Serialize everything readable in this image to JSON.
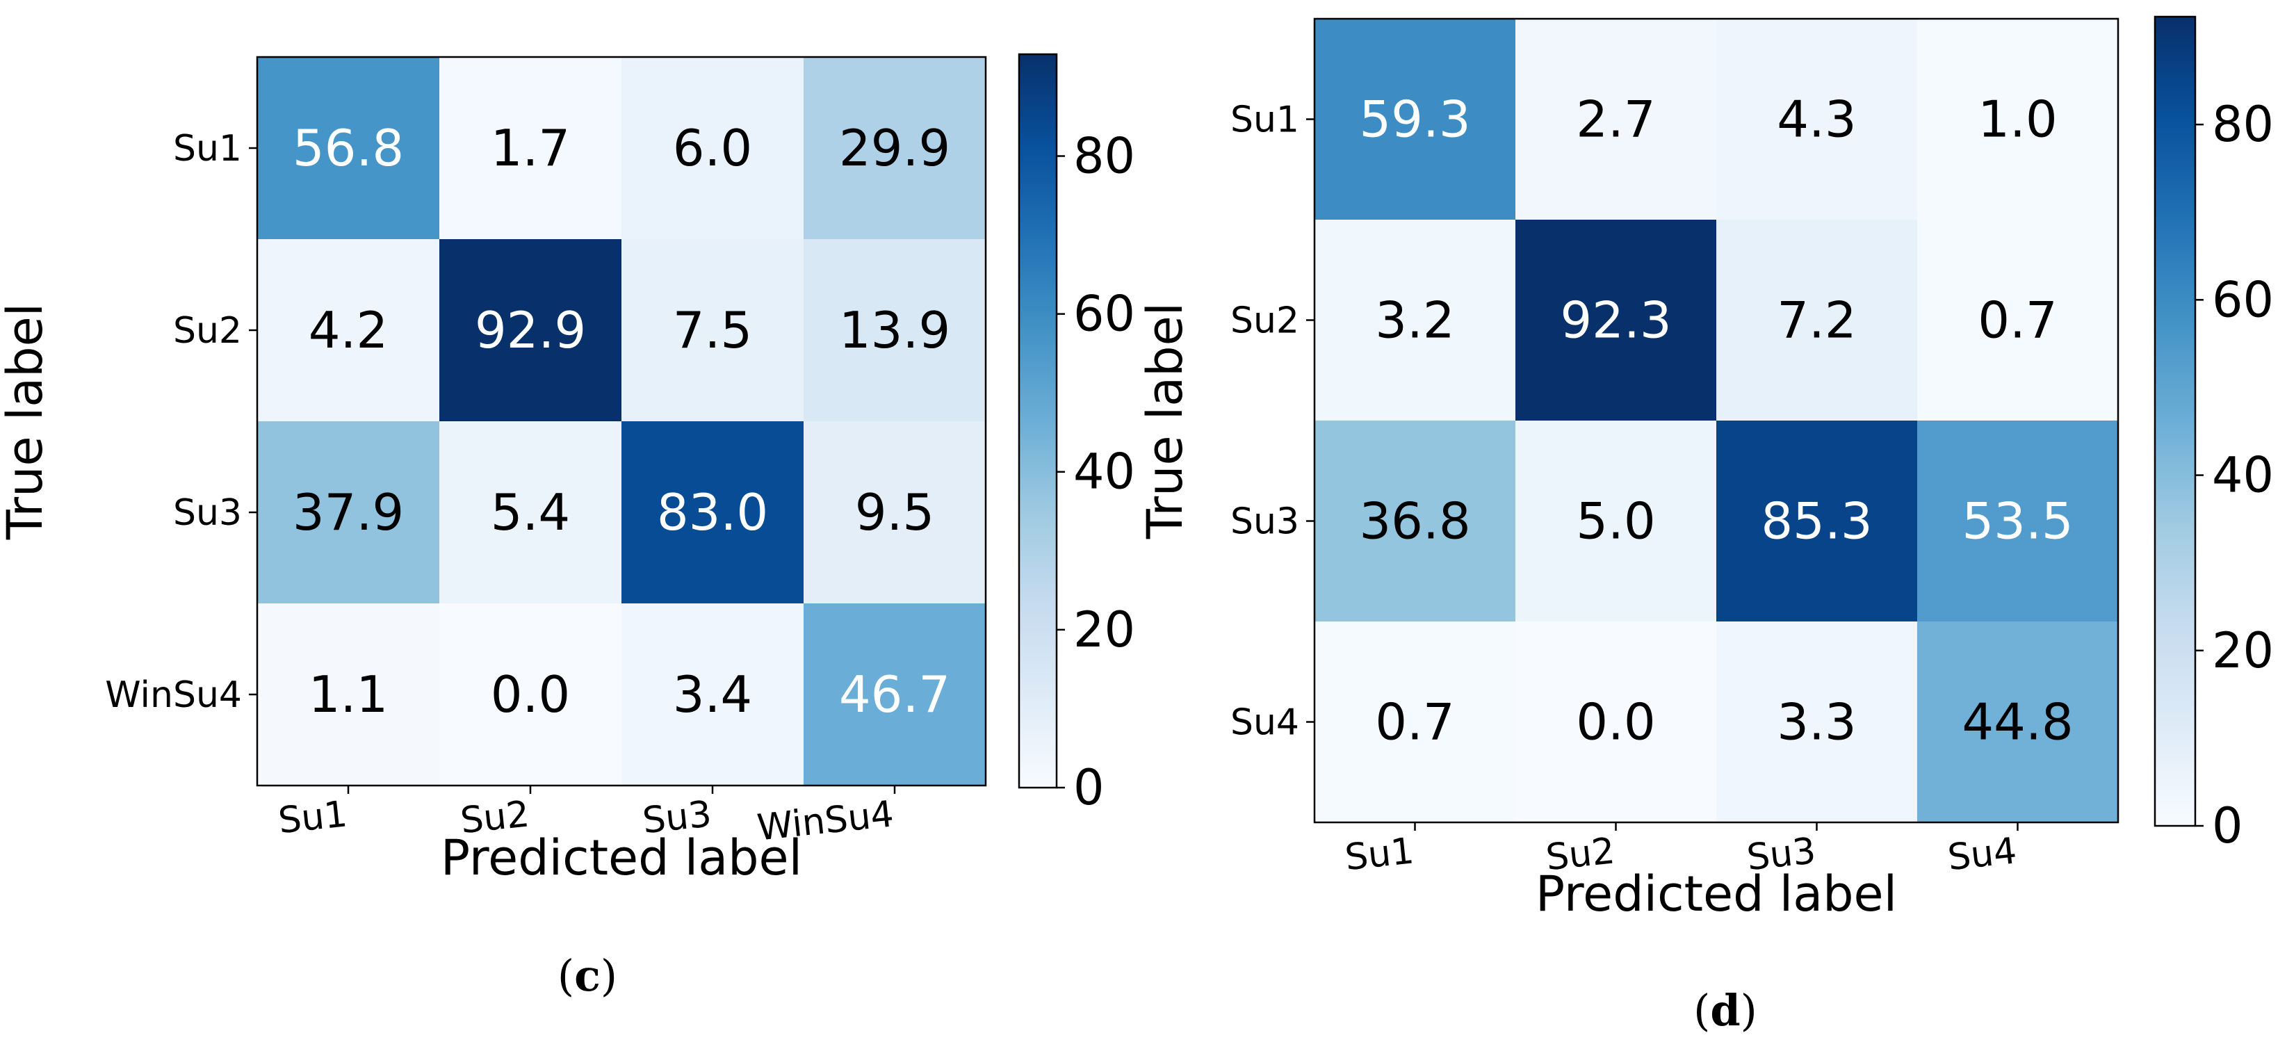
{
  "chart_data": [
    {
      "type": "heatmap",
      "panel_label": "(c)",
      "panel_letter": "c",
      "xlabel": "Predicted label",
      "ylabel": "True label",
      "x_categories": [
        "Su1",
        "Su2",
        "Su3",
        "WinSu4"
      ],
      "y_categories": [
        "Su1",
        "Su2",
        "Su3",
        "WinSu4"
      ],
      "values": [
        [
          56.8,
          1.7,
          6.0,
          29.9
        ],
        [
          4.2,
          92.9,
          7.5,
          13.9
        ],
        [
          37.9,
          5.4,
          83.0,
          9.5
        ],
        [
          1.1,
          0.0,
          3.4,
          46.7
        ]
      ],
      "value_labels": [
        [
          "56.8",
          "1.7",
          "6.0",
          "29.9"
        ],
        [
          "4.2",
          "92.9",
          "7.5",
          "13.9"
        ],
        [
          "37.9",
          "5.4",
          "83.0",
          "9.5"
        ],
        [
          "1.1",
          "0.0",
          "3.4",
          "46.7"
        ]
      ],
      "colormap": "Blues",
      "vmin": 0,
      "vmax": 92.9,
      "colorbar_ticks": [
        0,
        20,
        40,
        60,
        80
      ]
    },
    {
      "type": "heatmap",
      "panel_label": "(d)",
      "panel_letter": "d",
      "xlabel": "Predicted label",
      "ylabel": "True label",
      "x_categories": [
        "Su1",
        "Su2",
        "Su3",
        "Su4"
      ],
      "y_categories": [
        "Su1",
        "Su2",
        "Su3",
        "Su4"
      ],
      "values": [
        [
          59.3,
          2.7,
          4.3,
          1.0
        ],
        [
          3.2,
          92.3,
          7.2,
          0.7
        ],
        [
          36.8,
          5.0,
          85.3,
          53.5
        ],
        [
          0.7,
          0.0,
          3.3,
          44.8
        ]
      ],
      "value_labels": [
        [
          "59.3",
          "2.7",
          "4.3",
          "1.0"
        ],
        [
          "3.2",
          "92.3",
          "7.2",
          "0.7"
        ],
        [
          "36.8",
          "5.0",
          "85.3",
          "53.5"
        ],
        [
          "0.7",
          "0.0",
          "3.3",
          "44.8"
        ]
      ],
      "colormap": "Blues",
      "vmin": 0,
      "vmax": 92.3,
      "colorbar_ticks": [
        0,
        20,
        40,
        60,
        80
      ]
    }
  ]
}
